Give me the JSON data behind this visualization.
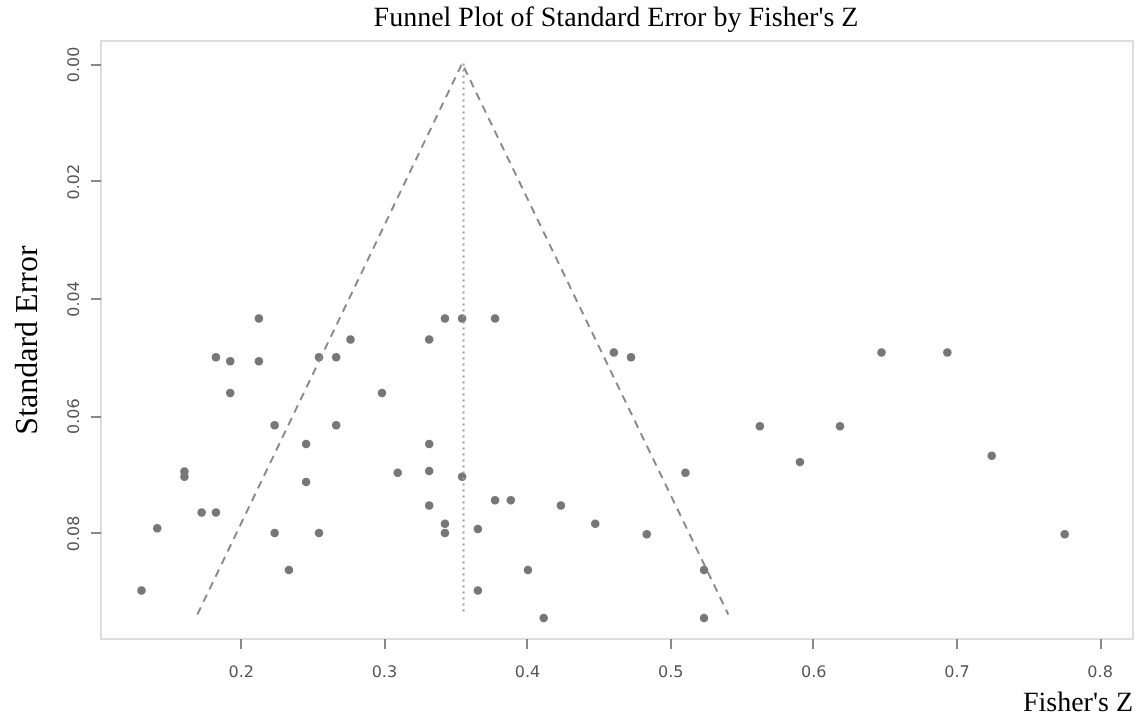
{
  "chart_data": {
    "type": "scatter",
    "title": "Funnel Plot of Standard Error by Fisher's Z",
    "xlabel": "Fisher's Z",
    "ylabel": "Standard Error",
    "xlim": [
      0.102,
      0.823
    ],
    "xticks": [
      0.2,
      0.3,
      0.4,
      0.5,
      0.6,
      0.7,
      0.8
    ],
    "ylim": [
      0.098,
      -0.004
    ],
    "yticks": [
      {
        "value": 0,
        "label": "0.00"
      },
      {
        "value": 0.02,
        "label": "0.02"
      },
      {
        "value": 0.04,
        "label": "0.04"
      },
      {
        "value": 0.06,
        "label": "0.06"
      },
      {
        "value": 0.08,
        "label": "0.08"
      }
    ],
    "grid": false,
    "marker": "circle",
    "series": [
      {
        "color": "#777777",
        "x": [
          0.213,
          0.343,
          0.355,
          0.378,
          0.277,
          0.332,
          0.183,
          0.193,
          0.213,
          0.255,
          0.267,
          0.461,
          0.473,
          0.193,
          0.299,
          0.224,
          0.267,
          0.246,
          0.332,
          0.161,
          0.161,
          0.31,
          0.332,
          0.355,
          0.246,
          0.173,
          0.183,
          0.332,
          0.378,
          0.389,
          0.424,
          0.343,
          0.343,
          0.366,
          0.448,
          0.224,
          0.255,
          0.484,
          0.234,
          0.401,
          0.366,
          0.412,
          0.142,
          0.131,
          0.648,
          0.694,
          0.563,
          0.619,
          0.591,
          0.725,
          0.511,
          0.524,
          0.524,
          0.776
        ],
        "values": [
          0.0435,
          0.0435,
          0.0435,
          0.0435,
          0.0471,
          0.0471,
          0.0501,
          0.0508,
          0.0508,
          0.0501,
          0.0501,
          0.0493,
          0.0501,
          0.0562,
          0.0562,
          0.0617,
          0.0617,
          0.0649,
          0.0649,
          0.0696,
          0.0705,
          0.0698,
          0.0695,
          0.0705,
          0.0714,
          0.0766,
          0.0766,
          0.0754,
          0.0745,
          0.0745,
          0.0754,
          0.0785,
          0.0801,
          0.0794,
          0.0785,
          0.0801,
          0.0801,
          0.0803,
          0.0864,
          0.0864,
          0.0899,
          0.0946,
          0.0793,
          0.0899,
          0.0493,
          0.0493,
          0.0619,
          0.0619,
          0.068,
          0.0669,
          0.0698,
          0.0864,
          0.0946,
          0.0803
        ]
      },
      {
        "type": "line",
        "color": "#888888",
        "line_style": "dashed",
        "marker": "none",
        "x": [
          0.17,
          0.355,
          0.541
        ],
        "values": [
          0.094,
          0.0,
          0.094
        ]
      },
      {
        "type": "line",
        "color": "#999999",
        "line_style": "dotted",
        "marker": "none",
        "x": [
          0.356,
          0.356
        ],
        "values": [
          0.0,
          0.094
        ]
      }
    ]
  }
}
